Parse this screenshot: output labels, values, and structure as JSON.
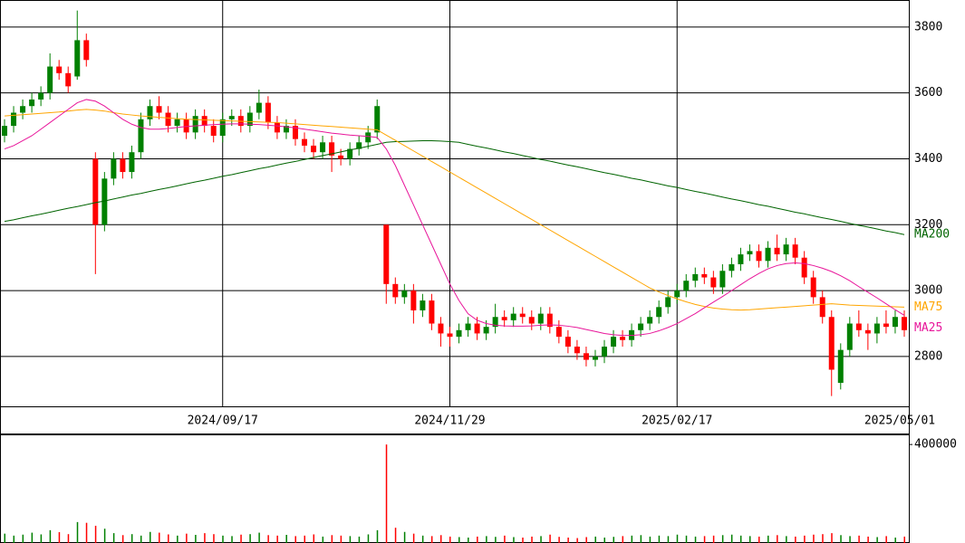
{
  "chart_data": {
    "type": "candlestick",
    "categories": [
      null,
      null,
      null,
      null,
      null,
      null,
      null,
      null,
      null,
      null,
      null,
      null,
      null,
      null,
      null,
      null,
      null,
      null,
      null,
      null,
      null,
      null,
      null,
      null,
      "2024/09/17",
      null,
      null,
      null,
      null,
      null,
      null,
      null,
      null,
      null,
      null,
      null,
      null,
      null,
      null,
      null,
      null,
      null,
      null,
      null,
      null,
      null,
      null,
      null,
      null,
      "2024/11/29",
      null,
      null,
      null,
      null,
      null,
      null,
      null,
      null,
      null,
      null,
      null,
      null,
      null,
      null,
      null,
      null,
      null,
      null,
      null,
      null,
      null,
      null,
      null,
      null,
      "2025/02/17",
      null,
      null,
      null,
      null,
      null,
      null,
      null,
      null,
      null,
      null,
      null,
      null,
      null,
      null,
      null,
      null,
      null,
      null,
      null,
      null,
      null,
      null,
      null,
      null,
      "2025/05/01"
    ],
    "open": [
      3470,
      3500,
      3540,
      3560,
      3580,
      3600,
      3680,
      3660,
      3650,
      3760,
      3400,
      3200,
      3340,
      3400,
      3360,
      3420,
      3520,
      3560,
      3540,
      3500,
      3520,
      3480,
      3530,
      3500,
      3470,
      3520,
      3530,
      3500,
      3540,
      3570,
      3510,
      3480,
      3500,
      3460,
      3440,
      3420,
      3450,
      3410,
      3400,
      3430,
      3450,
      3480,
      3200,
      3020,
      2980,
      3000,
      2940,
      2970,
      2900,
      2870,
      2860,
      2880,
      2900,
      2870,
      2890,
      2920,
      2910,
      2930,
      2920,
      2900,
      2930,
      2890,
      2860,
      2830,
      2810,
      2790,
      2800,
      2830,
      2860,
      2850,
      2880,
      2900,
      2920,
      2950,
      2980,
      3000,
      3030,
      3050,
      3040,
      3010,
      3060,
      3080,
      3110,
      3120,
      3090,
      3130,
      3110,
      3140,
      3100,
      3040,
      2980,
      2920,
      2720,
      2820,
      2900,
      2880,
      2870,
      2900,
      2890,
      2920
    ],
    "high": [
      3520,
      3560,
      3580,
      3600,
      3620,
      3720,
      3700,
      3680,
      3850,
      3780,
      3420,
      3360,
      3420,
      3420,
      3440,
      3540,
      3580,
      3590,
      3560,
      3540,
      3540,
      3550,
      3550,
      3520,
      3540,
      3550,
      3550,
      3560,
      3610,
      3590,
      3530,
      3520,
      3520,
      3480,
      3460,
      3470,
      3470,
      3430,
      3450,
      3470,
      3500,
      3580,
      3200,
      3040,
      3020,
      3020,
      2990,
      2990,
      2920,
      2890,
      2900,
      2920,
      2920,
      2910,
      2960,
      2940,
      2950,
      2950,
      2940,
      2950,
      2950,
      2910,
      2880,
      2850,
      2830,
      2820,
      2850,
      2880,
      2880,
      2900,
      2920,
      2940,
      2970,
      3000,
      3020,
      3050,
      3070,
      3070,
      3060,
      3080,
      3100,
      3130,
      3140,
      3140,
      3150,
      3170,
      3160,
      3160,
      3120,
      3060,
      3000,
      2940,
      2840,
      2920,
      2940,
      2900,
      2920,
      2940,
      2940,
      2940
    ],
    "low": [
      3450,
      3480,
      3520,
      3540,
      3560,
      3580,
      3640,
      3600,
      3640,
      3680,
      3050,
      3180,
      3320,
      3340,
      3340,
      3400,
      3500,
      3520,
      3480,
      3480,
      3460,
      3460,
      3480,
      3450,
      3450,
      3500,
      3480,
      3480,
      3520,
      3490,
      3460,
      3460,
      3440,
      3420,
      3400,
      3400,
      3360,
      3380,
      3380,
      3410,
      3430,
      3460,
      2960,
      2960,
      2960,
      2900,
      2920,
      2880,
      2830,
      2830,
      2840,
      2860,
      2850,
      2850,
      2870,
      2890,
      2890,
      2900,
      2880,
      2880,
      2870,
      2840,
      2810,
      2790,
      2770,
      2770,
      2780,
      2810,
      2830,
      2830,
      2860,
      2880,
      2900,
      2930,
      2960,
      2980,
      3010,
      3020,
      2990,
      2990,
      3040,
      3060,
      3090,
      3070,
      3070,
      3090,
      3090,
      3080,
      3020,
      2960,
      2900,
      2680,
      2700,
      2800,
      2860,
      2820,
      2840,
      2870,
      2870,
      2860
    ],
    "close": [
      3500,
      3540,
      3560,
      3580,
      3600,
      3680,
      3660,
      3620,
      3760,
      3700,
      3200,
      3340,
      3400,
      3360,
      3420,
      3520,
      3560,
      3540,
      3500,
      3520,
      3480,
      3530,
      3500,
      3470,
      3520,
      3530,
      3500,
      3540,
      3570,
      3510,
      3480,
      3500,
      3460,
      3440,
      3420,
      3450,
      3410,
      3400,
      3430,
      3450,
      3480,
      3560,
      3020,
      2980,
      3000,
      2940,
      2970,
      2900,
      2870,
      2860,
      2880,
      2900,
      2870,
      2890,
      2920,
      2910,
      2930,
      2920,
      2900,
      2930,
      2890,
      2860,
      2830,
      2810,
      2790,
      2800,
      2830,
      2860,
      2850,
      2880,
      2900,
      2920,
      2950,
      2980,
      3000,
      3030,
      3050,
      3040,
      3010,
      3060,
      3080,
      3110,
      3120,
      3090,
      3130,
      3110,
      3140,
      3100,
      3040,
      2980,
      2920,
      2760,
      2820,
      2900,
      2880,
      2870,
      2900,
      2890,
      2920,
      2880
    ],
    "up_color": "#008000",
    "down_color": "#ff0000",
    "ylim": [
      2646,
      3882
    ],
    "yticks": [
      2800,
      3000,
      3200,
      3400,
      3600,
      3800
    ],
    "grid": true,
    "series": [
      {
        "name": "MA200",
        "color": "#006400",
        "values": [
          3210,
          3215,
          3221,
          3227,
          3232,
          3238,
          3244,
          3250,
          3255,
          3261,
          3267,
          3272,
          3278,
          3284,
          3290,
          3295,
          3301,
          3307,
          3312,
          3318,
          3324,
          3330,
          3335,
          3341,
          3347,
          3352,
          3358,
          3364,
          3370,
          3375,
          3381,
          3387,
          3392,
          3398,
          3404,
          3410,
          3415,
          3421,
          3427,
          3432,
          3438,
          3444,
          3450,
          3452,
          3453,
          3454,
          3455,
          3455,
          3454,
          3452,
          3450,
          3444,
          3438,
          3433,
          3427,
          3421,
          3416,
          3410,
          3404,
          3398,
          3393,
          3387,
          3381,
          3376,
          3370,
          3364,
          3358,
          3353,
          3347,
          3341,
          3336,
          3330,
          3324,
          3318,
          3313,
          3307,
          3301,
          3296,
          3290,
          3284,
          3278,
          3273,
          3267,
          3261,
          3256,
          3250,
          3244,
          3238,
          3233,
          3227,
          3221,
          3216,
          3210,
          3204,
          3198,
          3193,
          3187,
          3181,
          3176,
          3170
        ]
      },
      {
        "name": "MA75",
        "color": "#ffa500",
        "values": [
          3530,
          3532,
          3534,
          3536,
          3538,
          3540,
          3542,
          3545,
          3548,
          3550,
          3548,
          3545,
          3540,
          3536,
          3533,
          3530,
          3528,
          3526,
          3524,
          3522,
          3520,
          3519,
          3518,
          3517,
          3516,
          3515,
          3514,
          3513,
          3512,
          3511,
          3510,
          3508,
          3506,
          3504,
          3502,
          3500,
          3498,
          3496,
          3494,
          3492,
          3490,
          3488,
          3472,
          3456,
          3440,
          3424,
          3408,
          3392,
          3376,
          3360,
          3344,
          3328,
          3312,
          3296,
          3280,
          3264,
          3248,
          3232,
          3216,
          3200,
          3184,
          3168,
          3152,
          3136,
          3120,
          3104,
          3088,
          3072,
          3056,
          3040,
          3024,
          3008,
          2996,
          2985,
          2975,
          2966,
          2958,
          2952,
          2947,
          2944,
          2942,
          2941,
          2942,
          2944,
          2946,
          2948,
          2950,
          2952,
          2954,
          2956,
          2958,
          2960,
          2958,
          2956,
          2955,
          2954,
          2953,
          2952,
          2951,
          2950
        ]
      },
      {
        "name": "MA25",
        "color": "#e8159a",
        "values": [
          3430,
          3440,
          3455,
          3470,
          3490,
          3510,
          3530,
          3550,
          3570,
          3580,
          3575,
          3560,
          3540,
          3520,
          3505,
          3495,
          3490,
          3490,
          3492,
          3495,
          3498,
          3500,
          3502,
          3504,
          3505,
          3506,
          3506,
          3505,
          3504,
          3502,
          3500,
          3497,
          3494,
          3490,
          3486,
          3482,
          3478,
          3475,
          3472,
          3470,
          3468,
          3465,
          3430,
          3380,
          3320,
          3260,
          3200,
          3140,
          3080,
          3020,
          2970,
          2930,
          2910,
          2900,
          2895,
          2893,
          2892,
          2892,
          2893,
          2895,
          2896,
          2895,
          2892,
          2888,
          2882,
          2876,
          2870,
          2866,
          2864,
          2864,
          2866,
          2870,
          2878,
          2888,
          2900,
          2915,
          2930,
          2948,
          2965,
          2982,
          3000,
          3018,
          3036,
          3052,
          3066,
          3076,
          3082,
          3084,
          3082,
          3076,
          3068,
          3058,
          3045,
          3030,
          3012,
          2995,
          2978,
          2960,
          2942,
          2925
        ]
      }
    ],
    "volume": {
      "values": [
        38000,
        30000,
        34000,
        42000,
        35000,
        52000,
        44000,
        36000,
        85000,
        82000,
        70000,
        58000,
        40000,
        32000,
        36000,
        30000,
        45000,
        42000,
        35000,
        30000,
        38000,
        33000,
        40000,
        36000,
        30000,
        28000,
        34000,
        36000,
        42000,
        32000,
        30000,
        33000,
        28000,
        30000,
        35000,
        26000,
        32000,
        30000,
        28000,
        26000,
        35000,
        52000,
        400000,
        62000,
        45000,
        38000,
        30000,
        28000,
        32000,
        26000,
        24000,
        22000,
        26000,
        28000,
        25000,
        30000,
        24000,
        22000,
        26000,
        28000,
        34000,
        25000,
        22000,
        20000,
        24000,
        26000,
        22000,
        25000,
        28000,
        30000,
        32000,
        26000,
        30000,
        28000,
        34000,
        30000,
        26000,
        28000,
        30000,
        32000,
        34000,
        30000,
        28000,
        26000,
        30000,
        32000,
        28000,
        26000,
        30000,
        34000,
        36000,
        40000,
        32000,
        28000,
        30000,
        26000,
        24000,
        28000,
        22000,
        26000
      ],
      "ylim": [
        0,
        441000
      ],
      "yticks": [
        400000
      ]
    }
  }
}
